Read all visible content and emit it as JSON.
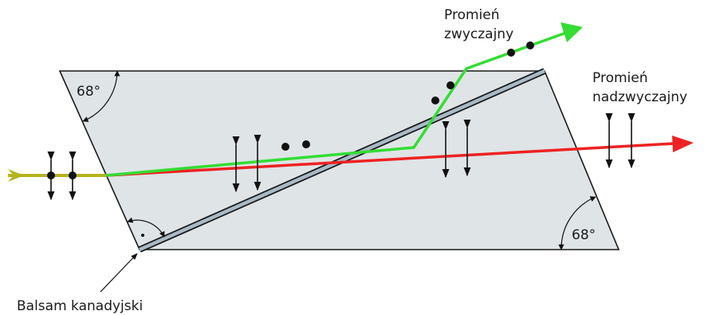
{
  "labels": {
    "ordinary_ray_line1": "Promień",
    "ordinary_ray_line2": "zwyczajny",
    "extraordinary_ray_line1": "Promień",
    "extraordinary_ray_line2": "nadzwyczajny",
    "angle_top_left": "68°",
    "angle_bottom_right": "68°",
    "balsam": "Balsam kanadyjski"
  },
  "colors": {
    "prism_fill": "#dfe4e7",
    "prism_stroke": "#1a1a1a",
    "balsam_fill": "#a9b9c6",
    "incident_ray": "#b5b41e",
    "ordinary_ray": "#33dd33",
    "extraordinary_ray": "#ee2222"
  }
}
